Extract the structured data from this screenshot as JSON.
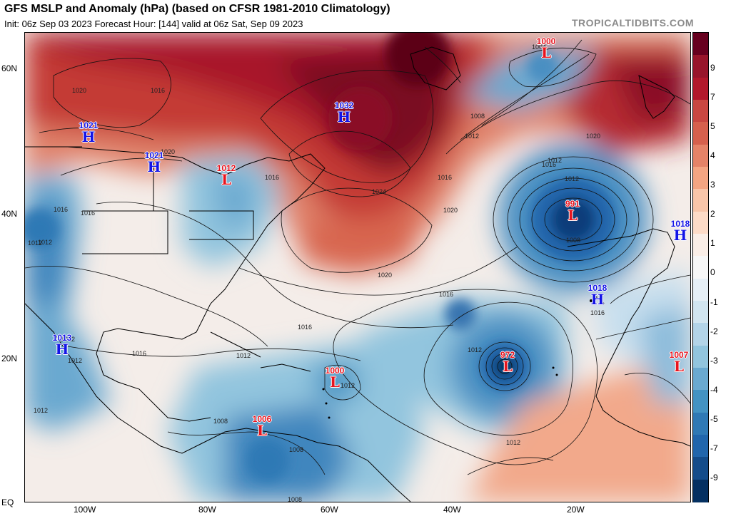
{
  "header": {
    "title": "GFS MSLP and Anomaly (hPa) (based on CFSR 1981-2010 Climatology)",
    "subtitle": "Init: 06z Sep 03 2023   Forecast Hour: [144]   valid at 06z Sat, Sep 09 2023",
    "brand": "TROPICALTIDBITS.COM"
  },
  "axes": {
    "lat_labels": [
      "60N",
      "40N",
      "20N",
      "EQ"
    ],
    "lon_labels": [
      "100W",
      "80W",
      "60W",
      "40W",
      "20W"
    ]
  },
  "colorbar": {
    "labels": [
      "9",
      "7",
      "5",
      "4",
      "3",
      "2",
      "1",
      "0",
      "-1",
      "-2",
      "-3",
      "-4",
      "-5",
      "-7",
      "-9"
    ],
    "colors": [
      "#67001f",
      "#98152b",
      "#b2182b",
      "#c94741",
      "#d6604d",
      "#e58368",
      "#f4a582",
      "#f8c5a9",
      "#fddbc7",
      "#faeee7",
      "#f7f7f7",
      "#e6eff6",
      "#d1e5f0",
      "#b3d4e8",
      "#92c5de",
      "#6aa9d0",
      "#4393c3",
      "#2f79b5",
      "#2166ac",
      "#144c8a",
      "#053061"
    ]
  },
  "systems": [
    {
      "type": "H",
      "value": "1021",
      "name": "high-1021-west"
    },
    {
      "type": "H",
      "value": "1021",
      "name": "high-1021-lakes"
    },
    {
      "type": "L",
      "value": "1012",
      "name": "low-1012-northeast"
    },
    {
      "type": "H",
      "value": "1032",
      "name": "high-1032-labrador"
    },
    {
      "type": "L",
      "value": "1000",
      "name": "low-1000-north-atlantic"
    },
    {
      "type": "L",
      "value": "991",
      "name": "low-991-midatlantic"
    },
    {
      "type": "H",
      "value": "1018",
      "name": "high-1018-iberia"
    },
    {
      "type": "H",
      "value": "1018",
      "name": "high-1018-canaries"
    },
    {
      "type": "L",
      "value": "972",
      "name": "low-972-hurricane"
    },
    {
      "type": "L",
      "value": "1007",
      "name": "low-1007-africa"
    },
    {
      "type": "L",
      "value": "1000",
      "name": "low-1000-caribbean"
    },
    {
      "type": "L",
      "value": "1006",
      "name": "low-1006-venezuela"
    },
    {
      "type": "H",
      "value": "1013",
      "name": "high-1013-mexico"
    }
  ],
  "isobar_labels": [
    "1016",
    "1020",
    "1016",
    "1020",
    "1012",
    "1016",
    "1016",
    "1024",
    "1020",
    "1016",
    "1012",
    "1008",
    "1012",
    "1016",
    "1012",
    "1020",
    "1016",
    "1016",
    "1012",
    "1008",
    "1016",
    "1012",
    "1016",
    "1012",
    "1012",
    "1012",
    "1012",
    "1012",
    "1012",
    "1008",
    "1008",
    "1008",
    "1004",
    "1020"
  ]
}
